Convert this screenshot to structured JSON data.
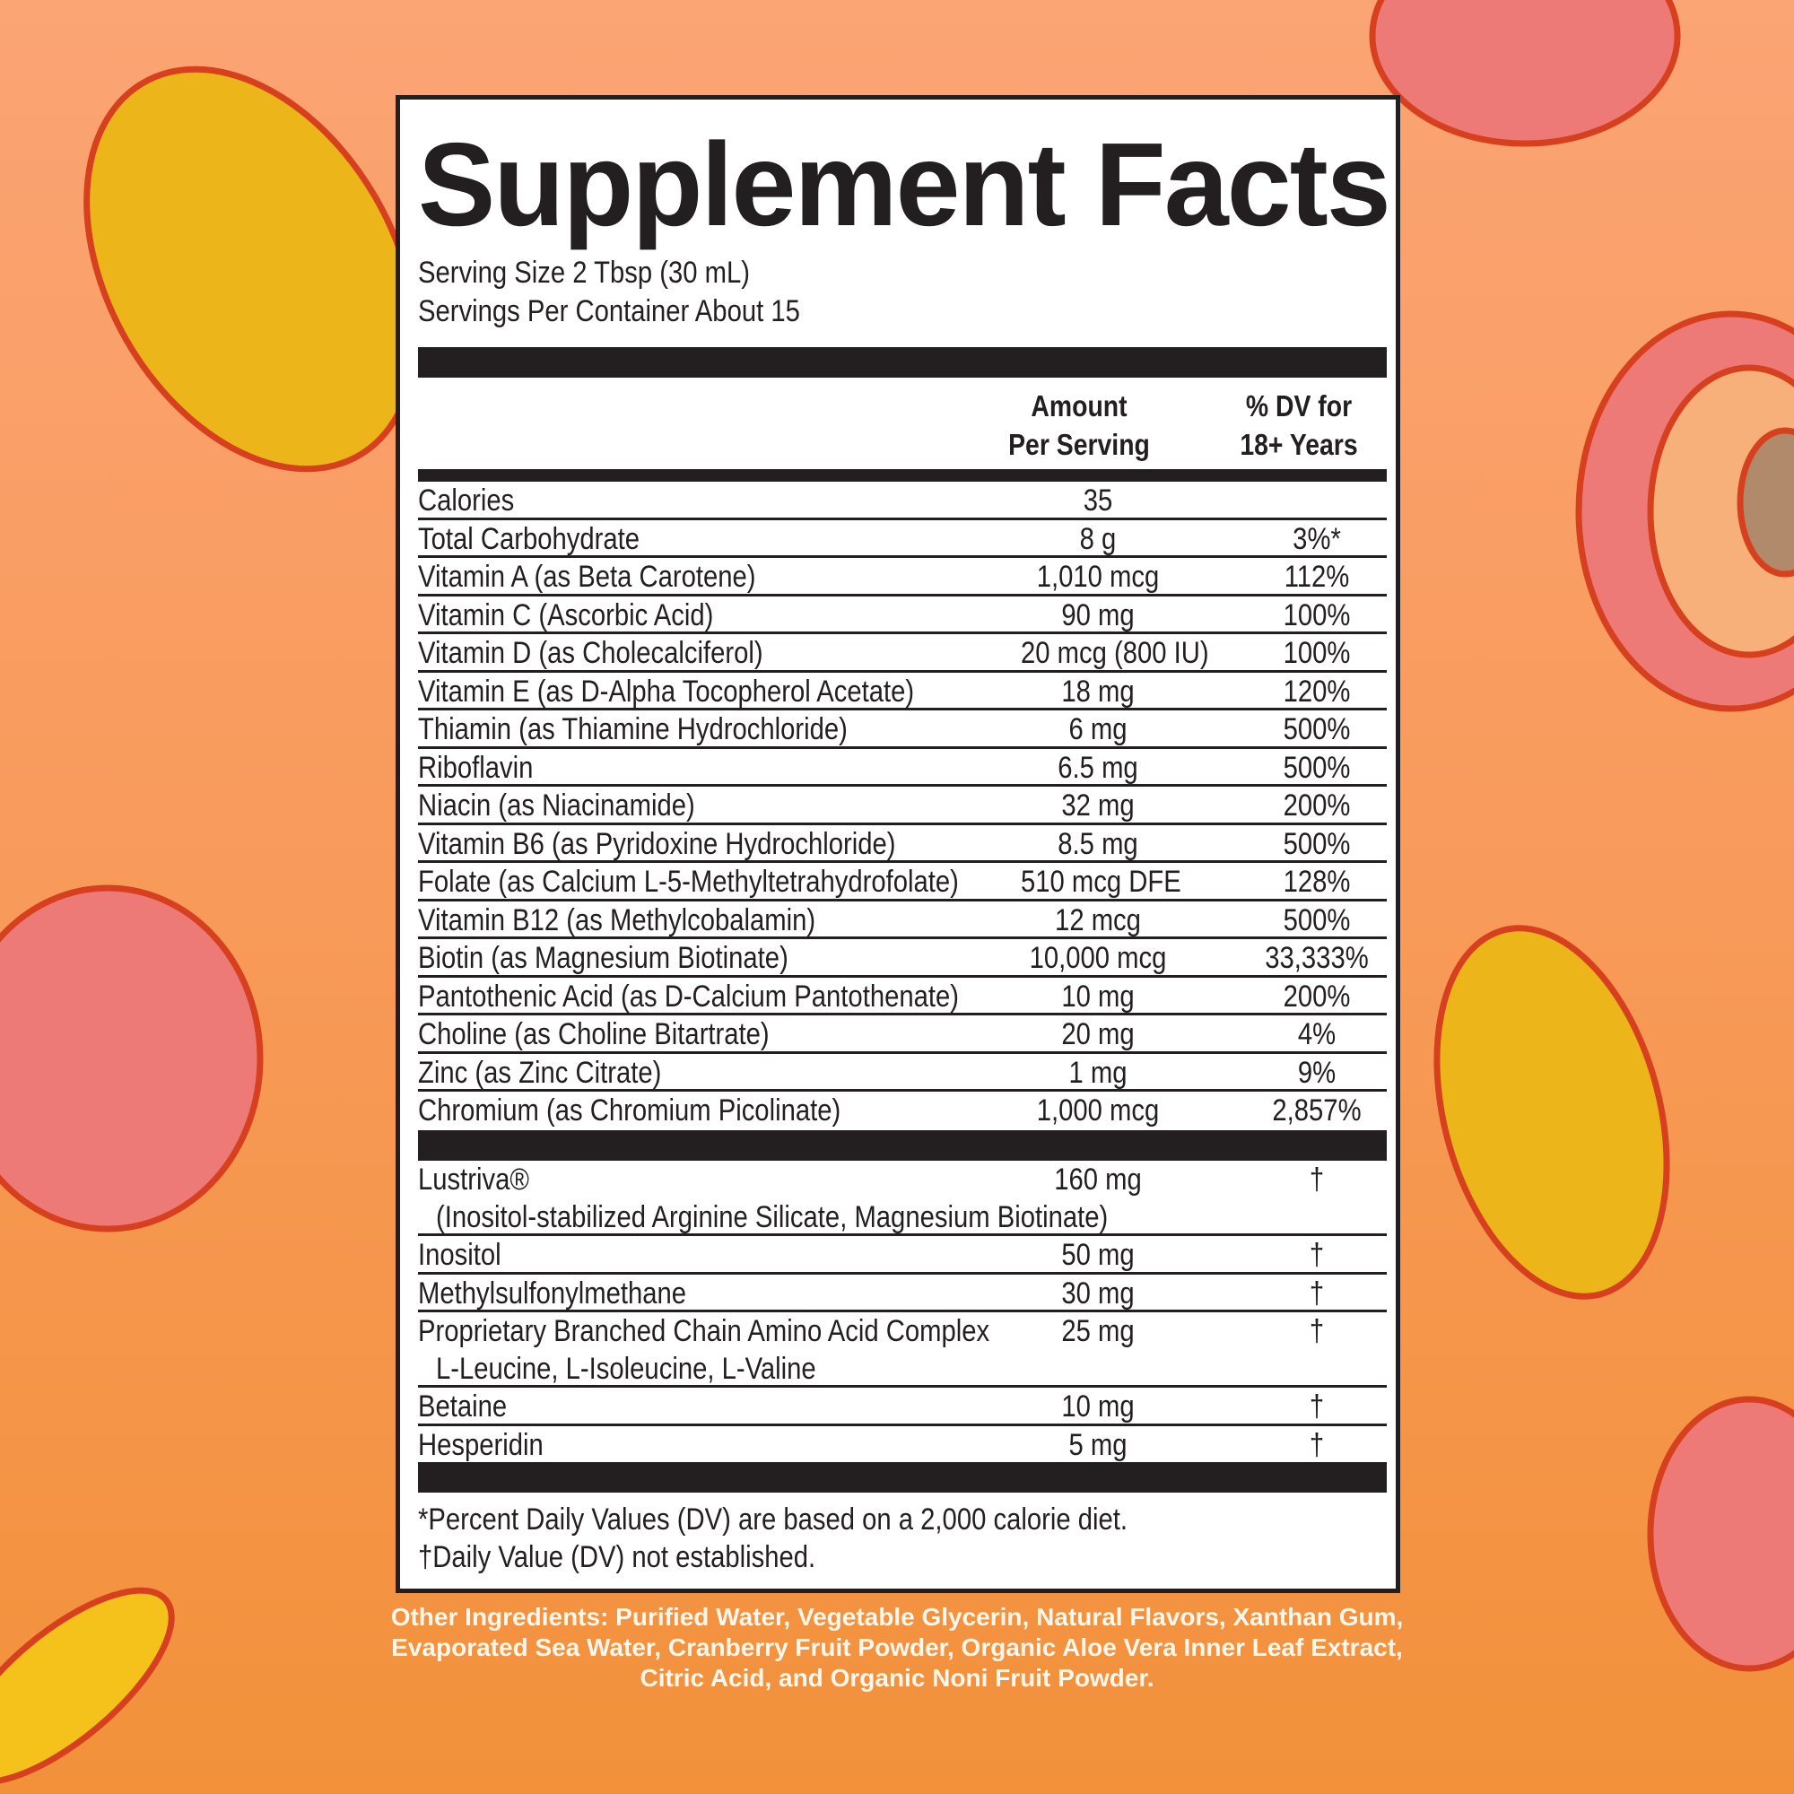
{
  "title": "Supplement Facts",
  "serving_size": "Serving Size 2 Tbsp (30 mL)",
  "servings_per_container": "Servings Per Container About 15",
  "header": {
    "amount_line1": "Amount",
    "amount_line2": "Per Serving",
    "dv_line1": "% DV for",
    "dv_line2": "18+ Years"
  },
  "nutrients": [
    {
      "name": "Calories",
      "amount": "35",
      "dv": ""
    },
    {
      "name": "Total Carbohydrate",
      "amount": "8 g",
      "dv": "3%*"
    },
    {
      "name": "Vitamin A (as Beta Carotene)",
      "amount": "1,010 mcg",
      "dv": "112%"
    },
    {
      "name": "Vitamin C (Ascorbic Acid)",
      "amount": "90 mg",
      "dv": "100%"
    },
    {
      "name": "Vitamin D (as Cholecalciferol)",
      "amount": "20 mcg (800 IU)",
      "dv": "100%"
    },
    {
      "name": "Vitamin E (as D-Alpha Tocopherol Acetate)",
      "amount": "18 mg",
      "dv": "120%"
    },
    {
      "name": "Thiamin (as Thiamine Hydrochloride)",
      "amount": "6 mg",
      "dv": "500%"
    },
    {
      "name": "Riboflavin",
      "amount": "6.5 mg",
      "dv": "500%"
    },
    {
      "name": "Niacin (as Niacinamide)",
      "amount": "32 mg",
      "dv": "200%"
    },
    {
      "name": "Vitamin B6 (as Pyridoxine Hydrochloride)",
      "amount": "8.5 mg",
      "dv": "500%"
    },
    {
      "name": "Folate (as Calcium L-5-Methyltetrahydrofolate)",
      "amount": "510 mcg DFE",
      "dv": "128%"
    },
    {
      "name": "Vitamin B12 (as Methylcobalamin)",
      "amount": "12 mcg",
      "dv": "500%"
    },
    {
      "name": "Biotin (as Magnesium Biotinate)",
      "amount": "10,000 mcg",
      "dv": "33,333%"
    },
    {
      "name": "Pantothenic Acid (as D-Calcium Pantothenate)",
      "amount": "10 mg",
      "dv": "200%"
    },
    {
      "name": "Choline (as Choline Bitartrate)",
      "amount": "20 mg",
      "dv": "4%"
    },
    {
      "name": "Zinc (as Zinc Citrate)",
      "amount": "1 mg",
      "dv": "9%"
    },
    {
      "name": "Chromium (as Chromium Picolinate)",
      "amount": "1,000 mcg",
      "dv": "2,857%"
    }
  ],
  "other_actives": [
    {
      "name": "Lustriva®",
      "sub": "(Inositol-stabilized Arginine Silicate, Magnesium Biotinate)",
      "amount": "160 mg",
      "dv": "†"
    },
    {
      "name": "Inositol",
      "amount": "50 mg",
      "dv": "†"
    },
    {
      "name": "Methylsulfonylmethane",
      "amount": "30 mg",
      "dv": "†"
    },
    {
      "name": "Proprietary Branched Chain Amino Acid Complex",
      "sub": "L-Leucine, L-Isoleucine, L-Valine",
      "amount": "25 mg",
      "dv": "†"
    },
    {
      "name": "Betaine",
      "amount": "10 mg",
      "dv": "†"
    },
    {
      "name": "Hesperidin",
      "amount": "5 mg",
      "dv": "†"
    }
  ],
  "footnotes": [
    "*Percent Daily Values (DV) are based on a 2,000 calorie diet.",
    "†Daily Value (DV) not established."
  ],
  "other_ingredients": "Other Ingredients: Purified Water, Vegetable Glycerin, Natural Flavors, Xanthan Gum, Evaporated Sea Water, Cranberry Fruit Powder, Organic Aloe Vera Inner Leaf Extract, Citric Acid, and Organic Noni Fruit Powder.",
  "colors": {
    "background_top": "#fba474",
    "background_bottom": "#f2913a",
    "mango": "#ecb51a",
    "peach": "#ee7070",
    "outline": "#d6401f",
    "text": "#231f20"
  }
}
